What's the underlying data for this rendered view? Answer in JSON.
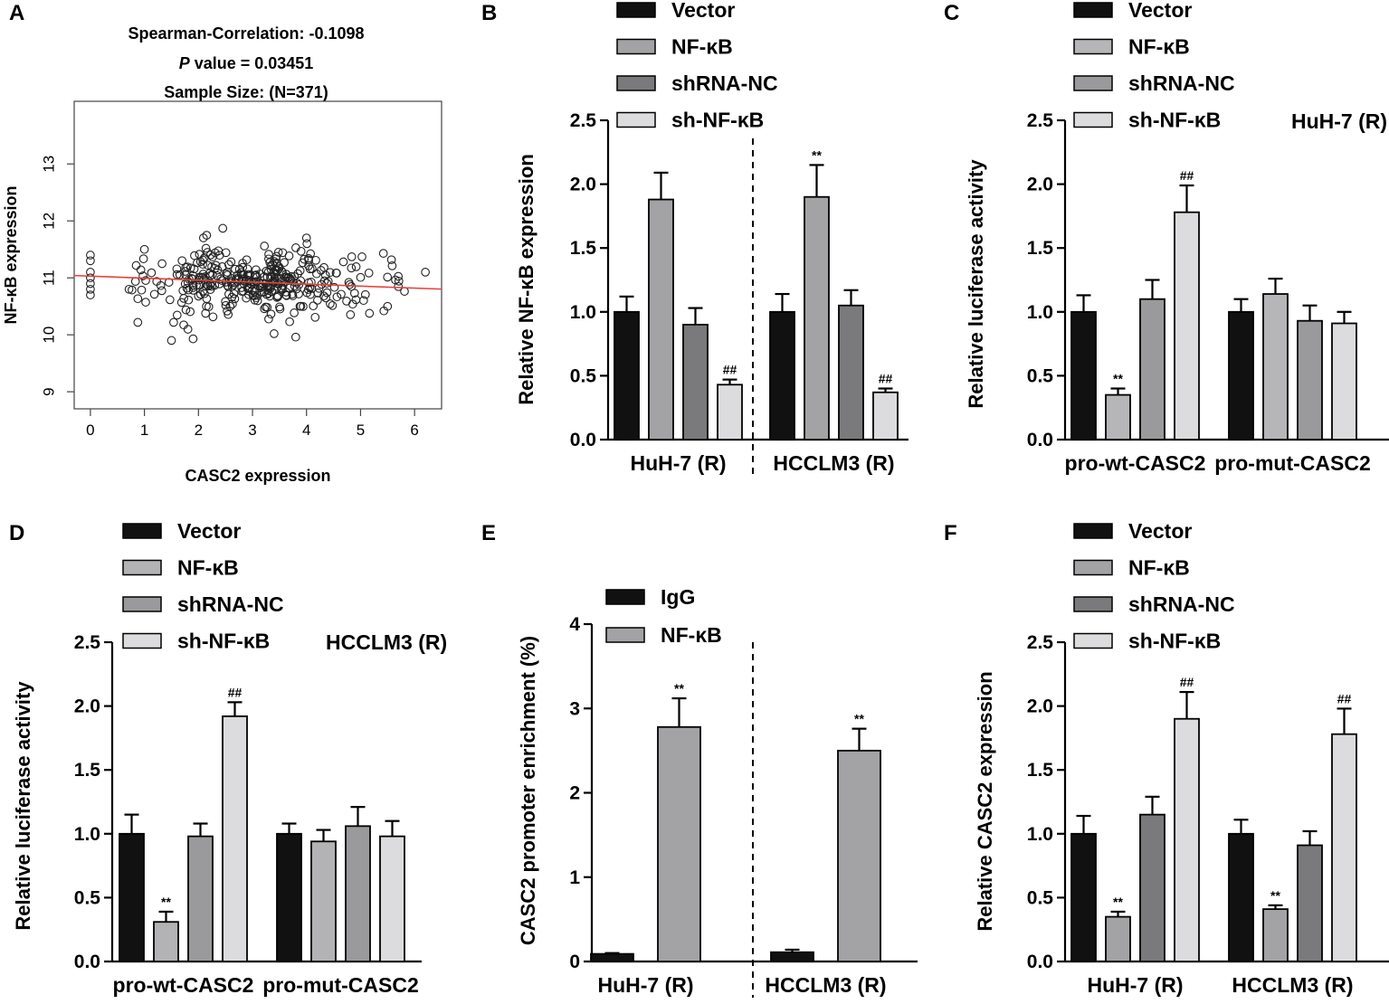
{
  "palette": {
    "black": "#111111",
    "grey1": "#a3a3a5",
    "grey2": "#7a7a7c",
    "light": "#dcdcde",
    "mid": "#9a9a9c",
    "nfkb_c": "#b6b6b8",
    "nfkb_d": "#b3b3b5",
    "trend": "#e8413a"
  },
  "panels": {
    "A": {
      "label": "A",
      "stats": {
        "line1": "Spearman-Correlation: -0.1098",
        "p_italic": "P",
        "p_rest": " value = 0.03451",
        "line3": "Sample Size: (N=371)"
      }
    },
    "B": {
      "label": "B"
    },
    "C": {
      "label": "C",
      "note": "HuH-7 (R)"
    },
    "D": {
      "label": "D",
      "note": "HCCLM3 (R)"
    },
    "E": {
      "label": "E"
    },
    "F": {
      "label": "F"
    }
  },
  "chart_data": [
    {
      "id": "A",
      "type": "scatter",
      "title": "Spearman-Correlation: -0.1098",
      "xlabel": "CASC2 expression",
      "ylabel": "NF-κB expression",
      "xlim": [
        -0.3,
        6.5
      ],
      "ylim": [
        8.7,
        14.1
      ],
      "xticks": [
        0,
        1,
        2,
        3,
        4,
        5,
        6
      ],
      "yticks": [
        9,
        10,
        11,
        12,
        13
      ],
      "n": 371,
      "trend": {
        "intercept": 11.03,
        "slope": -0.035
      },
      "seed": 7,
      "points": [
        [
          0,
          11.4
        ],
        [
          0,
          11.3
        ],
        [
          0,
          11.1
        ],
        [
          0,
          11.0
        ],
        [
          0,
          10.9
        ],
        [
          0,
          10.7
        ],
        [
          0,
          10.8
        ],
        [
          1.5,
          9.9
        ],
        [
          1.9,
          9.93
        ],
        [
          3.8,
          9.96
        ],
        [
          3.4,
          10.02
        ],
        [
          5.5,
          10.5
        ],
        [
          6.2,
          11.1
        ],
        [
          4.0,
          11.7
        ],
        [
          1.0,
          11.5
        ]
      ]
    },
    {
      "id": "B",
      "type": "bar",
      "ylabel": "Relative NF-κB expression",
      "ylim": [
        0,
        2.5
      ],
      "yticks": [
        "0.0",
        "0.5",
        "1.0",
        "1.5",
        "2.0",
        "2.5"
      ],
      "categories": [
        "HuH-7 (R)",
        "HCCLM3 (R)"
      ],
      "divider": true,
      "series": [
        {
          "name": "Vector",
          "color": "black",
          "values": [
            1.0,
            1.0
          ],
          "errors": [
            0.12,
            0.14
          ],
          "marks": [
            "",
            ""
          ]
        },
        {
          "name": "NF-κB",
          "color": "grey1",
          "values": [
            1.88,
            1.9
          ],
          "errors": [
            0.21,
            0.25
          ],
          "marks": [
            "",
            "**"
          ]
        },
        {
          "name": "shRNA-NC",
          "color": "grey2",
          "values": [
            0.9,
            1.05
          ],
          "errors": [
            0.13,
            0.12
          ],
          "marks": [
            "",
            ""
          ]
        },
        {
          "name": "sh-NF-κB",
          "color": "light",
          "values": [
            0.43,
            0.37
          ],
          "errors": [
            0.04,
            0.03
          ],
          "marks": [
            "##",
            "##"
          ]
        }
      ]
    },
    {
      "id": "C",
      "type": "bar",
      "ylabel": "Relative luciferase activity",
      "ylim": [
        0,
        2.5
      ],
      "yticks": [
        "0.0",
        "0.5",
        "1.0",
        "1.5",
        "2.0",
        "2.5"
      ],
      "categories": [
        "pro-wt-CASC2",
        "pro-mut-CASC2"
      ],
      "divider": false,
      "series": [
        {
          "name": "Vector",
          "color": "black",
          "values": [
            1.0,
            1.0
          ],
          "errors": [
            0.13,
            0.1
          ],
          "marks": [
            "",
            ""
          ]
        },
        {
          "name": "NF-κB",
          "color": "nfkb_c",
          "values": [
            0.35,
            1.14
          ],
          "errors": [
            0.05,
            0.12
          ],
          "marks": [
            "**",
            ""
          ]
        },
        {
          "name": "shRNA-NC",
          "color": "mid",
          "values": [
            1.1,
            0.93
          ],
          "errors": [
            0.15,
            0.12
          ],
          "marks": [
            "",
            ""
          ]
        },
        {
          "name": "sh-NF-κB",
          "color": "light",
          "values": [
            1.78,
            0.91
          ],
          "errors": [
            0.21,
            0.09
          ],
          "marks": [
            "##",
            ""
          ]
        }
      ]
    },
    {
      "id": "D",
      "type": "bar",
      "ylabel": "Relative luciferase activity",
      "ylim": [
        0,
        2.5
      ],
      "yticks": [
        "0.0",
        "0.5",
        "1.0",
        "1.5",
        "2.0",
        "2.5"
      ],
      "categories": [
        "pro-wt-CASC2",
        "pro-mut-CASC2"
      ],
      "divider": false,
      "series": [
        {
          "name": "Vector",
          "color": "black",
          "values": [
            1.0,
            1.0
          ],
          "errors": [
            0.15,
            0.08
          ],
          "marks": [
            "",
            ""
          ]
        },
        {
          "name": "NF-κB",
          "color": "nfkb_d",
          "values": [
            0.31,
            0.94
          ],
          "errors": [
            0.08,
            0.09
          ],
          "marks": [
            "**",
            ""
          ]
        },
        {
          "name": "shRNA-NC",
          "color": "mid",
          "values": [
            0.98,
            1.06
          ],
          "errors": [
            0.1,
            0.15
          ],
          "marks": [
            "",
            ""
          ]
        },
        {
          "name": "sh-NF-κB",
          "color": "light",
          "values": [
            1.92,
            0.98
          ],
          "errors": [
            0.11,
            0.12
          ],
          "marks": [
            "##",
            ""
          ]
        }
      ]
    },
    {
      "id": "E",
      "type": "bar",
      "ylabel": "CASC2 promoter enrichment (%)",
      "ylim": [
        0,
        4
      ],
      "yticks": [
        "0",
        "1",
        "2",
        "3",
        "4"
      ],
      "categories": [
        "HuH-7 (R)",
        "HCCLM3 (R)"
      ],
      "divider": true,
      "series": [
        {
          "name": "IgG",
          "color": "black",
          "values": [
            0.09,
            0.11
          ],
          "errors": [
            0.01,
            0.03
          ],
          "marks": [
            "",
            ""
          ]
        },
        {
          "name": "NF-κB",
          "color": "grey1",
          "values": [
            2.78,
            2.5
          ],
          "errors": [
            0.34,
            0.26
          ],
          "marks": [
            "**",
            "**"
          ]
        }
      ]
    },
    {
      "id": "F",
      "type": "bar",
      "ylabel": "Relative CASC2 expression",
      "ylim": [
        0,
        2.5
      ],
      "yticks": [
        "0.0",
        "0.5",
        "1.0",
        "1.5",
        "2.0",
        "2.5"
      ],
      "categories": [
        "HuH-7 (R)",
        "HCCLM3 (R)"
      ],
      "divider": false,
      "series": [
        {
          "name": "Vector",
          "color": "black",
          "values": [
            1.0,
            1.0
          ],
          "errors": [
            0.14,
            0.11
          ],
          "marks": [
            "",
            ""
          ]
        },
        {
          "name": "NF-κB",
          "color": "grey1",
          "values": [
            0.35,
            0.41
          ],
          "errors": [
            0.04,
            0.03
          ],
          "marks": [
            "**",
            "**"
          ]
        },
        {
          "name": "shRNA-NC",
          "color": "grey2",
          "values": [
            1.15,
            0.91
          ],
          "errors": [
            0.14,
            0.11
          ],
          "marks": [
            "",
            ""
          ]
        },
        {
          "name": "sh-NF-κB",
          "color": "light",
          "values": [
            1.9,
            1.78
          ],
          "errors": [
            0.21,
            0.2
          ],
          "marks": [
            "##",
            "##"
          ]
        }
      ]
    }
  ]
}
